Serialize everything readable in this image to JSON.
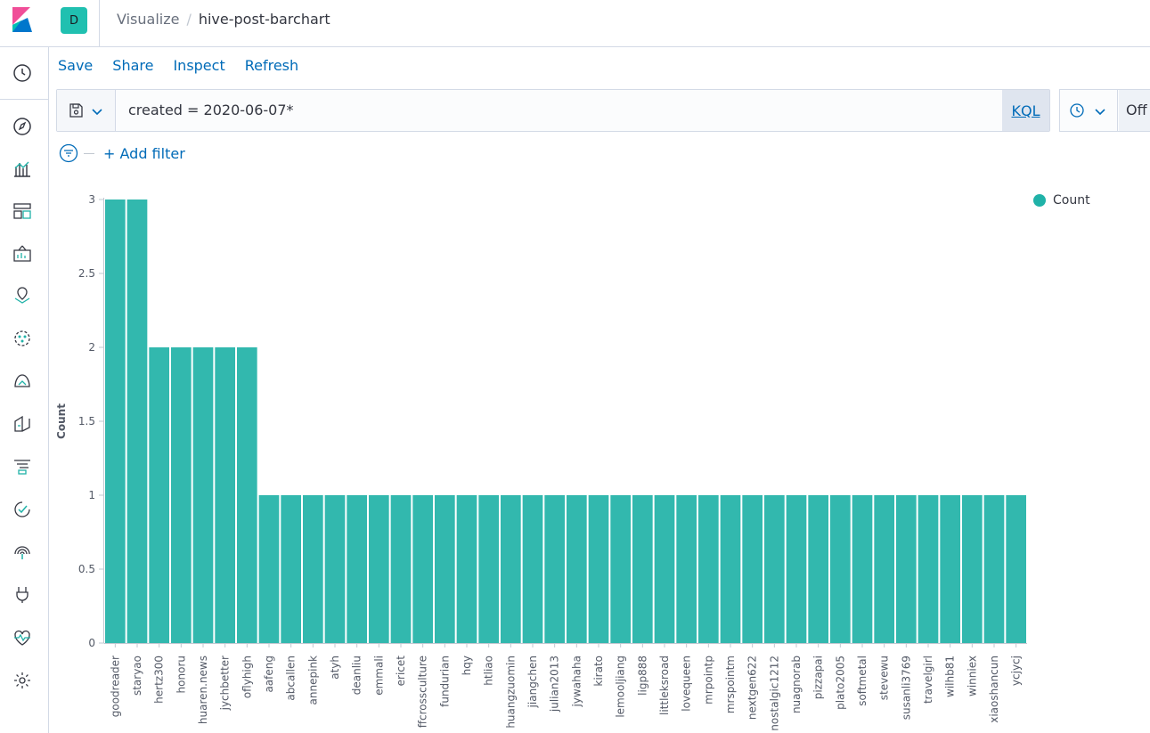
{
  "space": {
    "initial": "D"
  },
  "breadcrumbs": {
    "parent": "Visualize",
    "separator": "/",
    "current": "hive-post-barchart"
  },
  "topnav": {
    "save": "Save",
    "share": "Share",
    "inspect": "Inspect",
    "refresh": "Refresh"
  },
  "query": {
    "value": "created = 2020-06-07*",
    "language": "KQL"
  },
  "datepicker": {
    "refresh_state": "Off"
  },
  "filters": {
    "add_label": "+ Add filter"
  },
  "sidenav": {
    "icons": [
      "recent-icon",
      "discover-icon",
      "visualize-icon",
      "dashboard-icon",
      "canvas-icon",
      "maps-icon",
      "machine-learning-icon",
      "infrastructure-icon",
      "logs-icon",
      "apm-icon",
      "uptime-icon",
      "siem-icon",
      "dev-tools-icon",
      "monitoring-icon",
      "management-icon"
    ]
  },
  "colors": {
    "bar": "#32b8ae",
    "link": "#006bb8",
    "legend_dot": "#20b2a8"
  },
  "chart_data": {
    "type": "bar",
    "ylabel": "Count",
    "ylim": [
      0,
      3
    ],
    "yticks": [
      "0",
      "0.5",
      "1",
      "1.5",
      "2",
      "2.5",
      "3"
    ],
    "legend": {
      "position": "top-right",
      "entries": [
        "Count"
      ]
    },
    "categories": [
      "goodreader",
      "staryao",
      "hertz300",
      "honoru",
      "huaren.news",
      "jychbetter",
      "oflyhigh",
      "aafeng",
      "abcallen",
      "annepink",
      "atyh",
      "deanliu",
      "emmali",
      "ericet",
      "ffcrossculture",
      "fundurian",
      "hqy",
      "htliao",
      "huangzuomin",
      "jiangchen",
      "julian2013",
      "jywahaha",
      "kirato",
      "lemooljiang",
      "ligp888",
      "littleksroad",
      "lovequeen",
      "mrpointp",
      "mrspointm",
      "nextgen622",
      "nostalgic1212",
      "nuagnorab",
      "pizzapai",
      "plato2005",
      "softmetal",
      "stevewu",
      "susanli3769",
      "travelgirl",
      "wilhb81",
      "winniex",
      "xiaoshancun",
      "ycjycj"
    ],
    "values": [
      3,
      3,
      2,
      2,
      2,
      2,
      2,
      1,
      1,
      1,
      1,
      1,
      1,
      1,
      1,
      1,
      1,
      1,
      1,
      1,
      1,
      1,
      1,
      1,
      1,
      1,
      1,
      1,
      1,
      1,
      1,
      1,
      1,
      1,
      1,
      1,
      1,
      1,
      1,
      1,
      1,
      1
    ]
  }
}
